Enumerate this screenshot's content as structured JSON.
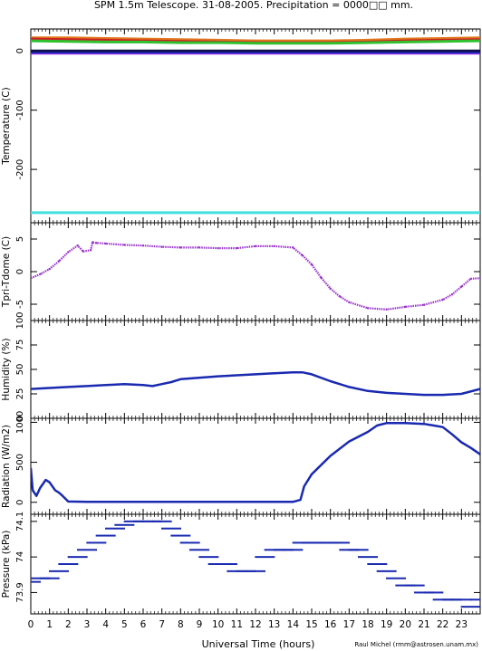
{
  "title": "SPM 1.5m Telescope. 31-08-2005. Precipitation = 0000□□ mm.",
  "xlabel": "Universal Time (hours)",
  "credit": "Raul Michel (rmm@astrosen.unam.mx)",
  "chart_data": [
    {
      "type": "line",
      "panel": "temperature",
      "ylabel": "Temperature (C)",
      "xlim": [
        0,
        24
      ],
      "ylim": [
        -290,
        37
      ],
      "yticks": [
        0,
        -100,
        -200
      ],
      "series": [
        {
          "color": "#e07820",
          "x": [
            0,
            2,
            4,
            6,
            8,
            10,
            12,
            14,
            16,
            18,
            20,
            22,
            24
          ],
          "y": [
            22,
            22,
            21,
            20,
            19,
            18,
            17,
            17,
            17,
            18,
            20,
            21,
            22
          ]
        },
        {
          "color": "#d02020",
          "x": [
            0,
            2,
            4,
            6,
            8,
            10,
            12,
            14,
            16,
            18,
            20,
            22,
            24
          ],
          "y": [
            20,
            19,
            18,
            17,
            16,
            15,
            14,
            14,
            14,
            15,
            17,
            18,
            19
          ]
        },
        {
          "color": "#30c030",
          "x": [
            0,
            2,
            4,
            6,
            8,
            10,
            12,
            14,
            16,
            18,
            20,
            22,
            24
          ],
          "y": [
            17,
            16,
            15,
            15,
            14,
            14,
            13,
            13,
            13,
            14,
            15,
            16,
            17
          ]
        },
        {
          "color": "#8a2be2",
          "x": [
            0,
            24
          ],
          "y": [
            -4,
            -4
          ]
        },
        {
          "color": "#2030d0",
          "x": [
            0,
            24
          ],
          "y": [
            -2,
            -2
          ]
        },
        {
          "color": "#101050",
          "x": [
            0,
            24
          ],
          "y": [
            0,
            0
          ]
        },
        {
          "color": "#40e0e0",
          "x": [
            0,
            24
          ],
          "y": [
            -273,
            -273
          ]
        }
      ]
    },
    {
      "type": "scatter",
      "panel": "tpri",
      "ylabel": "Tpri-Tdome (C)",
      "xlim": [
        0,
        24
      ],
      "ylim": [
        -7.5,
        7.5
      ],
      "yticks": [
        5,
        0,
        -5
      ],
      "color": "#9932cc",
      "x": [
        0,
        0.5,
        1,
        1.5,
        2,
        2.5,
        2.8,
        3.2,
        3.3,
        3.5,
        4,
        5,
        6,
        7,
        8,
        9,
        10,
        11,
        12,
        13,
        14,
        14.5,
        15,
        15.5,
        16,
        16.5,
        17,
        18,
        19,
        20,
        21,
        22,
        22.5,
        23,
        23.5,
        24
      ],
      "y": [
        -1,
        -0.4,
        0.4,
        1.6,
        3,
        4,
        3.1,
        3.3,
        4.5,
        4.4,
        4.3,
        4.1,
        4,
        3.8,
        3.7,
        3.7,
        3.6,
        3.6,
        3.9,
        3.9,
        3.7,
        2.5,
        1.1,
        -0.9,
        -2.6,
        -3.8,
        -4.7,
        -5.6,
        -5.8,
        -5.4,
        -5.1,
        -4.3,
        -3.5,
        -2.3,
        -1.1,
        -1
      ]
    },
    {
      "type": "line",
      "panel": "humidity",
      "ylabel": "Humidity (%)",
      "xlim": [
        0,
        24
      ],
      "ylim": [
        0,
        100
      ],
      "yticks": [
        0,
        25,
        50,
        75,
        100
      ],
      "color": "#1a2ab0",
      "x": [
        0,
        1,
        2,
        3,
        4,
        5,
        6,
        6.5,
        7,
        7.5,
        8,
        10,
        12,
        13,
        14,
        14.5,
        15,
        16,
        17,
        18,
        19,
        20,
        21,
        22,
        23,
        24
      ],
      "y": [
        30,
        31,
        32,
        33,
        34,
        35,
        34,
        33,
        35,
        37,
        40,
        43,
        45,
        46,
        47,
        47,
        45,
        38,
        32,
        28,
        26,
        25,
        24,
        24,
        25,
        30
      ]
    },
    {
      "type": "line",
      "panel": "radiation",
      "ylabel": "Radiation (W/m2)",
      "xlim": [
        0,
        24
      ],
      "ylim": [
        -150,
        1050
      ],
      "yticks": [
        0,
        500,
        1000
      ],
      "color": "#1a2ab0",
      "x": [
        0,
        0.1,
        0.3,
        0.5,
        0.8,
        1,
        1.3,
        1.5,
        1.7,
        2,
        3,
        4,
        6,
        8,
        10,
        12,
        13,
        14,
        14.4,
        14.6,
        15,
        16,
        17,
        18,
        18.5,
        19,
        20,
        21,
        21.5,
        22,
        22.5,
        23,
        23.5,
        24
      ],
      "y": [
        430,
        150,
        80,
        180,
        280,
        250,
        150,
        120,
        80,
        10,
        5,
        5,
        5,
        5,
        5,
        5,
        5,
        5,
        30,
        200,
        350,
        580,
        760,
        880,
        960,
        990,
        990,
        980,
        960,
        940,
        850,
        750,
        680,
        600
      ]
    },
    {
      "type": "scatter",
      "panel": "pressure",
      "ylabel": "Pressure (kPa)",
      "xlim": [
        0,
        24
      ],
      "ylim": [
        73.84,
        74.12
      ],
      "yticks": [
        73.9,
        74.0,
        74.1
      ],
      "color": "#1a2ab0",
      "x": [
        0,
        0.5,
        1,
        1.5,
        2,
        2.5,
        3,
        3.5,
        4,
        4.5,
        5,
        5.5,
        6,
        6.5,
        7,
        7.5,
        8,
        8.5,
        9,
        9.5,
        10,
        10.5,
        11,
        11.5,
        12,
        12.5,
        13,
        13.5,
        14,
        14.5,
        15,
        15.5,
        16,
        16.5,
        17,
        17.5,
        18,
        18.5,
        19,
        19.5,
        20,
        20.5,
        21,
        21.5,
        22,
        22.5,
        23,
        23.5,
        24
      ],
      "y": [
        73.93,
        73.94,
        73.94,
        73.96,
        73.98,
        74.0,
        74.02,
        74.04,
        74.06,
        74.08,
        74.09,
        74.1,
        74.1,
        74.1,
        74.1,
        74.08,
        74.06,
        74.04,
        74.02,
        74.0,
        73.98,
        73.98,
        73.96,
        73.96,
        73.96,
        74.0,
        74.02,
        74.02,
        74.02,
        74.04,
        74.04,
        74.04,
        74.04,
        74.04,
        74.02,
        74.02,
        74.0,
        73.98,
        73.96,
        73.94,
        73.92,
        73.92,
        73.9,
        73.9,
        73.88,
        73.88,
        73.88,
        73.86,
        73.88
      ]
    }
  ]
}
